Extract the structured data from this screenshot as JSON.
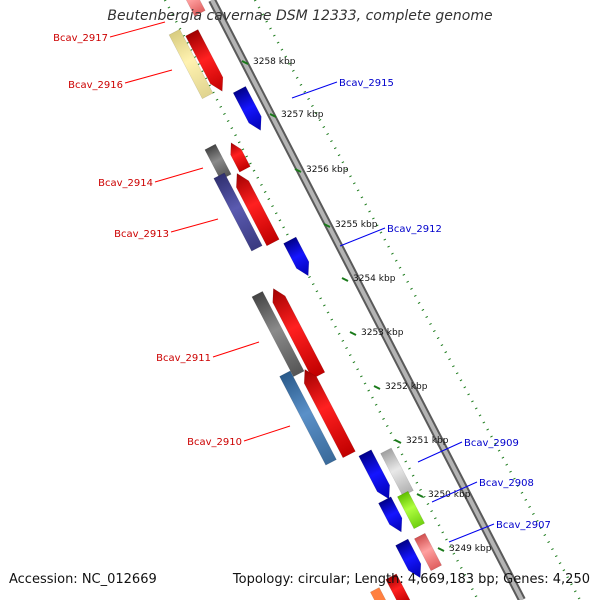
{
  "title": "Beutenbergia cavernae DSM 12333, complete genome",
  "accession": "Accession: NC_012669",
  "topology": "Topology: circular; Length: 4,669,183 bp; Genes: 4,250",
  "colors": {
    "label_left": "#cc0000",
    "label_right": "#0000cc",
    "dots": "#1a7a1a",
    "backbone": "#888888"
  },
  "ticks": [
    "3258 kbp",
    "3257 kbp",
    "3256 kbp",
    "3255 kbp",
    "3254 kbp",
    "3253 kbp",
    "3252 kbp",
    "3251 kbp",
    "3250 kbp",
    "3249 kbp"
  ],
  "genes_left": [
    {
      "label": "Bcav_2917",
      "color": "#ff0000"
    },
    {
      "label": "Bcav_2916",
      "color": "#ff0000"
    },
    {
      "label": "Bcav_2914",
      "color": "#ff0000"
    },
    {
      "label": "Bcav_2913",
      "color": "#ff0000"
    },
    {
      "label": "Bcav_2911",
      "color": "#ff0000"
    },
    {
      "label": "Bcav_2910",
      "color": "#ff0000"
    }
  ],
  "genes_right": [
    {
      "label": "Bcav_2915",
      "color": "#0000ee"
    },
    {
      "label": "Bcav_2912",
      "color": "#0000ee"
    },
    {
      "label": "Bcav_2909",
      "color": "#0000ee"
    },
    {
      "label": "Bcav_2908",
      "color": "#0000ee"
    },
    {
      "label": "Bcav_2907",
      "color": "#0000ee"
    }
  ]
}
